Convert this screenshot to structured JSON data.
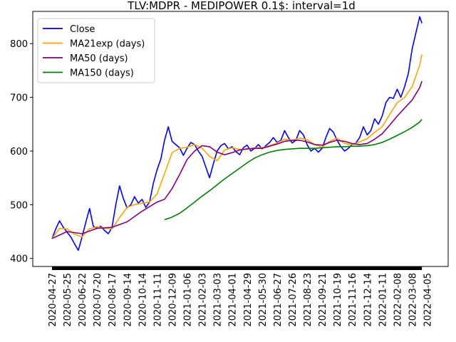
{
  "chart_data": {
    "type": "line",
    "title": "TLV:MDPR - MEDIPOWER 0.1$: interval=1d",
    "xlabel": "",
    "ylabel": "",
    "ylim": [
      385,
      860
    ],
    "yticks": [
      400,
      500,
      600,
      700,
      800
    ],
    "x_tick_labels": [
      "2020-04-27",
      "2020-05-25",
      "2020-06-22",
      "2020-07-20",
      "2020-08-17",
      "2020-09-14",
      "2020-10-14",
      "2020-11-11",
      "2020-12-09",
      "2021-01-06",
      "2021-02-03",
      "2021-03-03",
      "2021-04-01",
      "2021-04-29",
      "2021-05-30",
      "2021-06-27",
      "2021-07-26",
      "2021-08-23",
      "2021-09-21",
      "2021-10-19",
      "2021-11-16",
      "2021-12-14",
      "2022-01-11",
      "2022-02-08",
      "2022-03-08",
      "2022-04-05"
    ],
    "legend_position": "top-left",
    "grid": false,
    "series": [
      {
        "name": "Close",
        "color": "#0000ff",
        "points": [
          [
            0,
            437
          ],
          [
            0.25,
            455
          ],
          [
            0.5,
            470
          ],
          [
            0.75,
            458
          ],
          [
            1,
            449
          ],
          [
            1.25,
            440
          ],
          [
            1.5,
            427
          ],
          [
            1.75,
            415
          ],
          [
            2,
            440
          ],
          [
            2.25,
            467
          ],
          [
            2.5,
            493
          ],
          [
            2.75,
            460
          ],
          [
            3,
            456
          ],
          [
            3.25,
            460
          ],
          [
            3.5,
            452
          ],
          [
            3.75,
            446
          ],
          [
            4,
            458
          ],
          [
            4.25,
            500
          ],
          [
            4.5,
            535
          ],
          [
            4.75,
            512
          ],
          [
            5,
            494
          ],
          [
            5.25,
            500
          ],
          [
            5.5,
            515
          ],
          [
            5.75,
            503
          ],
          [
            6,
            510
          ],
          [
            6.25,
            495
          ],
          [
            6.5,
            505
          ],
          [
            6.75,
            540
          ],
          [
            7,
            565
          ],
          [
            7.25,
            585
          ],
          [
            7.5,
            620
          ],
          [
            7.75,
            645
          ],
          [
            8,
            618
          ],
          [
            8.25,
            612
          ],
          [
            8.5,
            606
          ],
          [
            8.75,
            592
          ],
          [
            9,
            605
          ],
          [
            9.25,
            616
          ],
          [
            9.5,
            612
          ],
          [
            9.75,
            600
          ],
          [
            10,
            590
          ],
          [
            10.25,
            570
          ],
          [
            10.5,
            550
          ],
          [
            10.75,
            576
          ],
          [
            11,
            600
          ],
          [
            11.25,
            610
          ],
          [
            11.5,
            614
          ],
          [
            11.75,
            604
          ],
          [
            12,
            608
          ],
          [
            12.25,
            599
          ],
          [
            12.5,
            593
          ],
          [
            12.75,
            606
          ],
          [
            13,
            611
          ],
          [
            13.25,
            600
          ],
          [
            13.5,
            605
          ],
          [
            13.75,
            612
          ],
          [
            14,
            604
          ],
          [
            14.25,
            610
          ],
          [
            14.5,
            616
          ],
          [
            14.75,
            625
          ],
          [
            15,
            616
          ],
          [
            15.25,
            620
          ],
          [
            15.5,
            638
          ],
          [
            15.75,
            625
          ],
          [
            16,
            615
          ],
          [
            16.25,
            620
          ],
          [
            16.5,
            638
          ],
          [
            16.75,
            630
          ],
          [
            17,
            612
          ],
          [
            17.25,
            600
          ],
          [
            17.5,
            605
          ],
          [
            17.75,
            598
          ],
          [
            18,
            605
          ],
          [
            18.25,
            625
          ],
          [
            18.5,
            642
          ],
          [
            18.75,
            635
          ],
          [
            19,
            620
          ],
          [
            19.25,
            608
          ],
          [
            19.5,
            600
          ],
          [
            19.75,
            605
          ],
          [
            20,
            612
          ],
          [
            20.25,
            615
          ],
          [
            20.5,
            625
          ],
          [
            20.75,
            645
          ],
          [
            21,
            630
          ],
          [
            21.25,
            638
          ],
          [
            21.5,
            660
          ],
          [
            21.75,
            650
          ],
          [
            22,
            665
          ],
          [
            22.25,
            690
          ],
          [
            22.5,
            700
          ],
          [
            22.75,
            698
          ],
          [
            23,
            715
          ],
          [
            23.25,
            700
          ],
          [
            23.5,
            720
          ],
          [
            23.75,
            745
          ],
          [
            24,
            790
          ],
          [
            24.25,
            820
          ],
          [
            24.5,
            850
          ],
          [
            24.65,
            838
          ]
        ]
      },
      {
        "name": "MA21exp (days)",
        "color": "#ffa500",
        "points": [
          [
            0,
            437
          ],
          [
            0.5,
            456
          ],
          [
            1,
            455
          ],
          [
            1.5,
            445
          ],
          [
            2,
            440
          ],
          [
            2.5,
            455
          ],
          [
            3,
            459
          ],
          [
            3.5,
            456
          ],
          [
            4,
            455
          ],
          [
            4.5,
            476
          ],
          [
            5,
            495
          ],
          [
            5.5,
            500
          ],
          [
            6,
            503
          ],
          [
            6.5,
            505
          ],
          [
            7,
            520
          ],
          [
            7.5,
            558
          ],
          [
            8,
            597
          ],
          [
            8.5,
            605
          ],
          [
            9,
            607
          ],
          [
            9.5,
            612
          ],
          [
            10,
            605
          ],
          [
            10.5,
            590
          ],
          [
            11,
            582
          ],
          [
            11.5,
            602
          ],
          [
            12,
            606
          ],
          [
            12.5,
            603
          ],
          [
            13,
            603
          ],
          [
            13.5,
            606
          ],
          [
            14,
            606
          ],
          [
            14.5,
            610
          ],
          [
            15,
            615
          ],
          [
            15.5,
            622
          ],
          [
            16,
            620
          ],
          [
            16.5,
            624
          ],
          [
            17,
            621
          ],
          [
            17.5,
            612
          ],
          [
            18,
            607
          ],
          [
            18.5,
            618
          ],
          [
            19,
            624
          ],
          [
            19.5,
            614
          ],
          [
            20,
            612
          ],
          [
            20.5,
            617
          ],
          [
            21,
            623
          ],
          [
            21.5,
            635
          ],
          [
            22,
            645
          ],
          [
            22.5,
            668
          ],
          [
            23,
            690
          ],
          [
            23.5,
            700
          ],
          [
            24,
            720
          ],
          [
            24.5,
            760
          ],
          [
            24.65,
            780
          ]
        ]
      },
      {
        "name": "MA50 (days)",
        "color": "#800080",
        "points": [
          [
            0,
            437
          ],
          [
            1,
            450
          ],
          [
            2,
            446
          ],
          [
            3,
            456
          ],
          [
            4,
            458
          ],
          [
            5,
            468
          ],
          [
            6,
            488
          ],
          [
            7,
            505
          ],
          [
            7.5,
            510
          ],
          [
            8,
            530
          ],
          [
            8.5,
            556
          ],
          [
            9,
            584
          ],
          [
            9.5,
            600
          ],
          [
            10,
            610
          ],
          [
            10.5,
            608
          ],
          [
            11,
            598
          ],
          [
            11.5,
            593
          ],
          [
            12,
            597
          ],
          [
            12.5,
            602
          ],
          [
            13,
            604
          ],
          [
            13.5,
            605
          ],
          [
            14,
            605
          ],
          [
            14.5,
            609
          ],
          [
            15,
            613
          ],
          [
            15.5,
            618
          ],
          [
            16,
            620
          ],
          [
            16.5,
            620
          ],
          [
            17,
            617
          ],
          [
            17.5,
            612
          ],
          [
            18,
            611
          ],
          [
            18.5,
            616
          ],
          [
            19,
            620
          ],
          [
            19.5,
            618
          ],
          [
            20,
            614
          ],
          [
            20.5,
            612
          ],
          [
            21,
            614
          ],
          [
            21.5,
            622
          ],
          [
            22,
            632
          ],
          [
            22.5,
            648
          ],
          [
            23,
            665
          ],
          [
            23.5,
            680
          ],
          [
            24,
            695
          ],
          [
            24.5,
            718
          ],
          [
            24.65,
            730
          ]
        ]
      },
      {
        "name": "MA150 (days)",
        "color": "#008000",
        "points": [
          [
            7.5,
            472
          ],
          [
            8,
            477
          ],
          [
            8.5,
            484
          ],
          [
            9,
            494
          ],
          [
            9.5,
            505
          ],
          [
            10,
            516
          ],
          [
            10.5,
            526
          ],
          [
            11,
            537
          ],
          [
            11.5,
            548
          ],
          [
            12,
            558
          ],
          [
            12.5,
            568
          ],
          [
            13,
            578
          ],
          [
            13.5,
            587
          ],
          [
            14,
            593
          ],
          [
            14.5,
            598
          ],
          [
            15,
            601
          ],
          [
            15.5,
            603
          ],
          [
            16,
            604
          ],
          [
            16.5,
            605
          ],
          [
            17,
            605
          ],
          [
            17.5,
            605
          ],
          [
            18,
            606
          ],
          [
            18.5,
            607
          ],
          [
            19,
            608
          ],
          [
            19.5,
            608
          ],
          [
            20,
            609
          ],
          [
            20.5,
            609
          ],
          [
            21,
            610
          ],
          [
            21.5,
            612
          ],
          [
            22,
            616
          ],
          [
            22.5,
            622
          ],
          [
            23,
            629
          ],
          [
            23.5,
            636
          ],
          [
            24,
            644
          ],
          [
            24.5,
            654
          ],
          [
            24.65,
            659
          ]
        ]
      }
    ]
  }
}
